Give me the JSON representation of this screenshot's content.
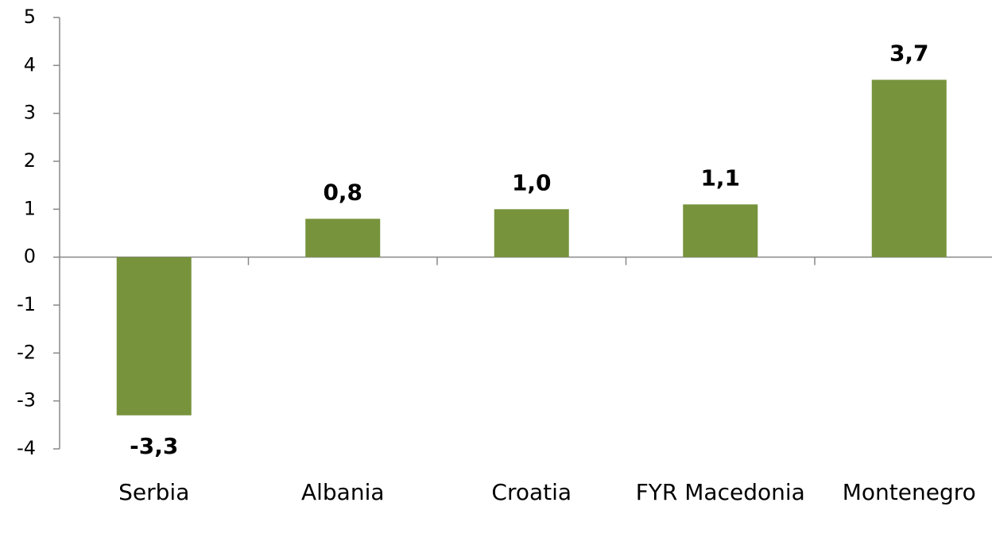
{
  "chart_data": {
    "type": "bar",
    "categories": [
      "Serbia",
      "Albania",
      "Croatia",
      "FYR Macedonia",
      "Montenegro"
    ],
    "values": [
      -3.3,
      0.8,
      1.0,
      1.1,
      3.7
    ],
    "value_labels": [
      "-3,3",
      "0,8",
      "1,0",
      "1,1",
      "3,7"
    ],
    "color": "#77933c",
    "ylim": [
      -4,
      5
    ],
    "yticks": [
      -4,
      -3,
      -2,
      -1,
      0,
      1,
      2,
      3,
      4,
      5
    ],
    "grid": false
  }
}
